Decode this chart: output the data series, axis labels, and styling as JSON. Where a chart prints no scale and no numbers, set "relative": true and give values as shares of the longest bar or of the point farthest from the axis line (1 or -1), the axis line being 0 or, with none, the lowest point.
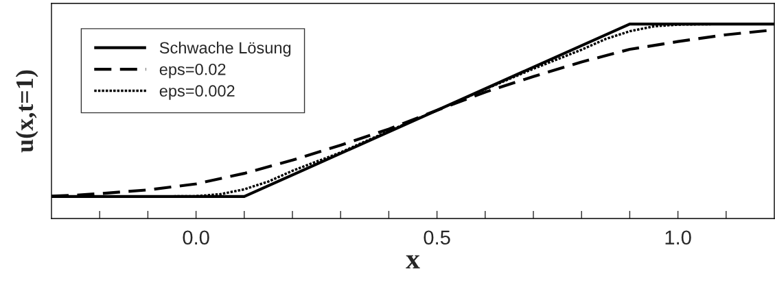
{
  "chart_data": {
    "type": "line",
    "relative": true,
    "xlabel": "x",
    "ylabel": "u(x,t=1)",
    "xlim": [
      -0.3,
      1.2
    ],
    "xticks": [
      {
        "value": -0.2,
        "label": null
      },
      {
        "value": -0.1,
        "label": null
      },
      {
        "value": 0.0,
        "label": "0.0"
      },
      {
        "value": 0.1,
        "label": null
      },
      {
        "value": 0.2,
        "label": null
      },
      {
        "value": 0.3,
        "label": null
      },
      {
        "value": 0.4,
        "label": null
      },
      {
        "value": 0.5,
        "label": "0.5"
      },
      {
        "value": 0.6,
        "label": null
      },
      {
        "value": 0.7,
        "label": null
      },
      {
        "value": 0.8,
        "label": null
      },
      {
        "value": 0.9,
        "label": null
      },
      {
        "value": 1.0,
        "label": "1.0"
      },
      {
        "value": 1.1,
        "label": null
      }
    ],
    "tick_labels": "x",
    "grid": false,
    "legend": "top left",
    "marker": "none",
    "series": [
      {
        "name": "Schwache Lösung",
        "color": "#000000",
        "line_style": "solid",
        "x": [
          -0.3,
          0.1,
          0.9,
          1.2
        ],
        "values": [
          0.113,
          0.113,
          1.0,
          1.0
        ]
      },
      {
        "name": "eps=0.02",
        "color": "#000000",
        "line_style": "dashed",
        "x": [
          -0.3,
          -0.25,
          -0.2,
          -0.1,
          0.0,
          0.1,
          0.2,
          0.3,
          0.4,
          0.5,
          0.6,
          0.7,
          0.8,
          0.9,
          1.0,
          1.1,
          1.2
        ],
        "values": [
          0.115,
          0.12,
          0.128,
          0.147,
          0.178,
          0.232,
          0.3,
          0.377,
          0.46,
          0.5565,
          0.65,
          0.73,
          0.805,
          0.87,
          0.91,
          0.945,
          0.97
        ]
      },
      {
        "name": "eps=0.002",
        "color": "#000000",
        "line_style": "dotted",
        "x": [
          -0.3,
          -0.1,
          0.0,
          0.05,
          0.1,
          0.15,
          0.2,
          0.3,
          0.4,
          0.5,
          0.6,
          0.7,
          0.8,
          0.85,
          0.9,
          0.95,
          1.0,
          1.1,
          1.2
        ],
        "values": [
          0.113,
          0.113,
          0.115,
          0.125,
          0.15,
          0.19,
          0.245,
          0.34,
          0.45,
          0.5565,
          0.665,
          0.77,
          0.868,
          0.923,
          0.963,
          0.988,
          0.997,
          1.0,
          1.0
        ]
      }
    ]
  }
}
